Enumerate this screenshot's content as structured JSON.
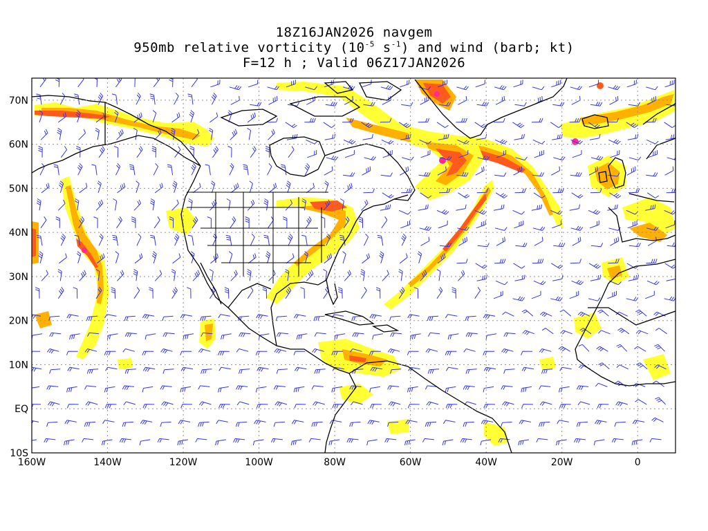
{
  "header": {
    "line1": "18Z16JAN2026 navgem",
    "line2_pre": "950mb relative vorticity (10",
    "line2_exp1": "-5",
    "line2_mid": " s",
    "line2_exp2": "-1",
    "line2_post": ") and wind (barb; kt)",
    "line3": "F=12 h ; Valid 06Z17JAN2026"
  },
  "map": {
    "lon_range": [
      -160,
      10
    ],
    "lat_range": [
      -10,
      75
    ],
    "lat_labels": [
      "70N",
      "60N",
      "50N",
      "40N",
      "30N",
      "20N",
      "10N",
      "EQ",
      "10S"
    ],
    "lon_labels": [
      "160W",
      "140W",
      "120W",
      "100W",
      "80W",
      "60W",
      "40W",
      "20W",
      "0"
    ],
    "colors": {
      "vort_low": "#ffff33",
      "vort_mid": "#ffb000",
      "vort_high": "#ff5a1e",
      "vort_max": "#ff2a9a",
      "barb": "#3333ee",
      "coast": "#000000",
      "grid": "#909090"
    }
  }
}
